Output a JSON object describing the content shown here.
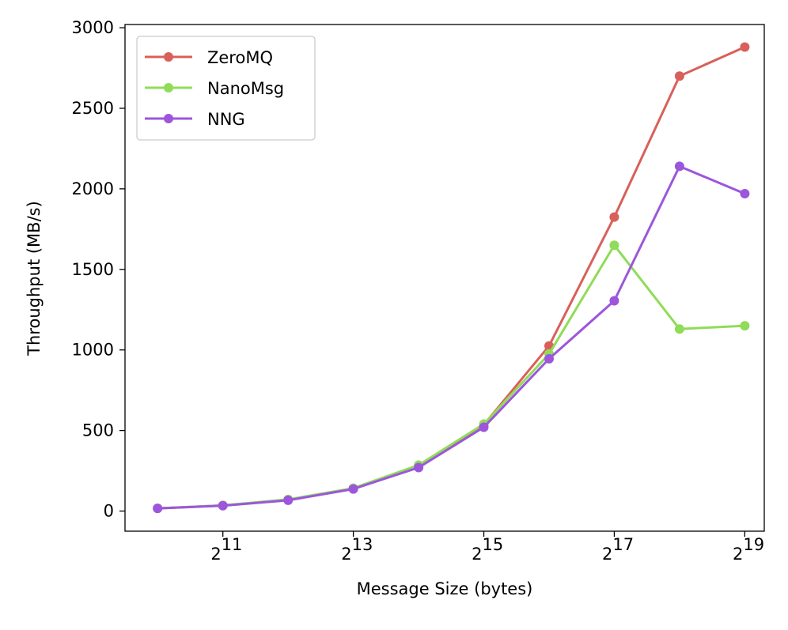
{
  "chart_data": {
    "type": "line",
    "xlabel": "Message Size (bytes)",
    "ylabel": "Throughput (MB/s)",
    "x_scale": "log2",
    "x": [
      1024,
      2048,
      4096,
      8192,
      16384,
      32768,
      65536,
      131072,
      262144,
      524288
    ],
    "xlim": [
      724,
      645000
    ],
    "ylim": [
      -125,
      3020
    ],
    "x_ticks": [
      {
        "value": 2048,
        "base": "2",
        "exp": "11"
      },
      {
        "value": 8192,
        "base": "2",
        "exp": "13"
      },
      {
        "value": 32768,
        "base": "2",
        "exp": "15"
      },
      {
        "value": 131072,
        "base": "2",
        "exp": "17"
      },
      {
        "value": 524288,
        "base": "2",
        "exp": "19"
      }
    ],
    "y_ticks": [
      {
        "value": 0,
        "label": "0"
      },
      {
        "value": 500,
        "label": "500"
      },
      {
        "value": 1000,
        "label": "1000"
      },
      {
        "value": 1500,
        "label": "1500"
      },
      {
        "value": 2000,
        "label": "2000"
      },
      {
        "value": 2500,
        "label": "2500"
      },
      {
        "value": 3000,
        "label": "3000"
      }
    ],
    "grid": false,
    "legend_position": "top-left",
    "series": [
      {
        "name": "ZeroMQ",
        "color": "#d9605a",
        "values": [
          17,
          35,
          70,
          140,
          280,
          535,
          1025,
          1825,
          2700,
          2880
        ]
      },
      {
        "name": "NanoMsg",
        "color": "#90dc58",
        "values": [
          17,
          35,
          72,
          142,
          285,
          540,
          975,
          1650,
          1130,
          1150
        ]
      },
      {
        "name": "NNG",
        "color": "#9c56dc",
        "values": [
          17,
          33,
          67,
          137,
          270,
          520,
          945,
          1305,
          2140,
          1970
        ]
      }
    ]
  }
}
